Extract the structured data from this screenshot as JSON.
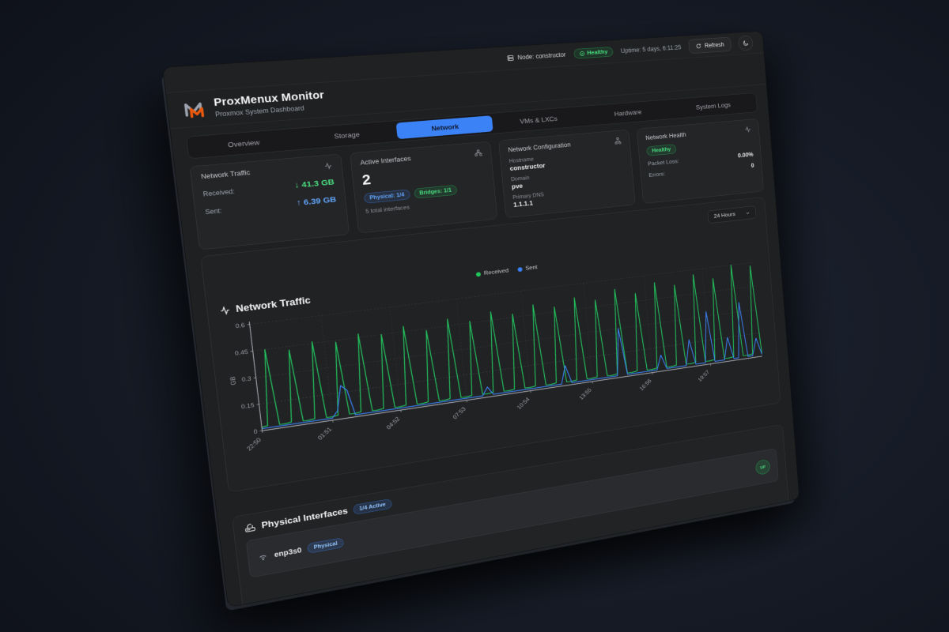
{
  "app": {
    "title": "ProxMenux Monitor",
    "subtitle": "Proxmox System Dashboard"
  },
  "topbar": {
    "node_label": "Node: constructor",
    "health_badge": "Healthy",
    "uptime": "Uptime: 5 days, 6:11:25",
    "refresh_label": "Refresh"
  },
  "tabs": {
    "items": [
      {
        "label": "Overview",
        "active": false
      },
      {
        "label": "Storage",
        "active": false
      },
      {
        "label": "Network",
        "active": true
      },
      {
        "label": "VMs & LXCs",
        "active": false
      },
      {
        "label": "Hardware",
        "active": false
      },
      {
        "label": "System Logs",
        "active": false
      }
    ]
  },
  "cards": {
    "traffic": {
      "title": "Network Traffic",
      "received_label": "Received:",
      "received_value": "↓ 41.3 GB",
      "sent_label": "Sent:",
      "sent_value": "↑ 6.39 GB"
    },
    "interfaces": {
      "title": "Active Interfaces",
      "count": "2",
      "physical_badge": "Physical: 1/4",
      "bridges_badge": "Bridges: 1/1",
      "total": "5 total interfaces"
    },
    "config": {
      "title": "Network Configuration",
      "hostname_label": "Hostname",
      "hostname": "constructor",
      "domain_label": "Domain",
      "domain": "pve",
      "dns_label": "Primary DNS",
      "dns": "1.1.1.1"
    },
    "health": {
      "title": "Network Health",
      "status": "Healthy",
      "packet_loss_label": "Packet Loss:",
      "packet_loss": "0.00%",
      "errors_label": "Errors:",
      "errors": "0"
    }
  },
  "range_select": {
    "value": "24 Hours"
  },
  "physical_section": {
    "title": "Physical Interfaces",
    "active_badge": "1/4 Active",
    "rows": [
      {
        "name": "enp3s0",
        "type_badge": "Physical",
        "status": "UP"
      }
    ]
  },
  "colors": {
    "accent_blue": "#3b82f6",
    "green": "#22c55e",
    "logo_orange": "#ea580c",
    "logo_gray": "#9ca3af"
  },
  "chart_data": {
    "type": "line",
    "title": "Network Traffic",
    "xlabel": "",
    "ylabel": "GB",
    "ylim": [
      0,
      0.6
    ],
    "yticks": [
      0,
      0.15,
      0.3,
      0.45,
      0.6
    ],
    "grid": true,
    "legend_position": "top-center",
    "x_tick_positions": [
      0,
      12,
      24,
      36,
      48,
      60,
      72,
      84
    ],
    "x_tick_labels": [
      "22:50",
      "01:51",
      "04:52",
      "07:53",
      "10:54",
      "13:55",
      "16:56",
      "19:57"
    ],
    "series": [
      {
        "name": "Received",
        "color": "#22c55e",
        "values": [
          0.02,
          0.024,
          0.45,
          0.021,
          0.02,
          0.024,
          0.43,
          0.021,
          0.02,
          0.024,
          0.46,
          0.021,
          0.02,
          0.024,
          0.44,
          0.021,
          0.02,
          0.024,
          0.47,
          0.021,
          0.02,
          0.024,
          0.45,
          0.021,
          0.02,
          0.024,
          0.48,
          0.021,
          0.02,
          0.024,
          0.44,
          0.021,
          0.02,
          0.024,
          0.49,
          0.021,
          0.02,
          0.024,
          0.46,
          0.021,
          0.02,
          0.024,
          0.5,
          0.021,
          0.02,
          0.024,
          0.47,
          0.021,
          0.02,
          0.024,
          0.51,
          0.021,
          0.02,
          0.024,
          0.48,
          0.021,
          0.02,
          0.024,
          0.52,
          0.021,
          0.02,
          0.024,
          0.49,
          0.021,
          0.02,
          0.024,
          0.54,
          0.021,
          0.02,
          0.024,
          0.5,
          0.021,
          0.02,
          0.024,
          0.55,
          0.021,
          0.02,
          0.024,
          0.52,
          0.021,
          0.02,
          0.024,
          0.57,
          0.021,
          0.02,
          0.024,
          0.53,
          0.021,
          0.02,
          0.024,
          0.6,
          0.021,
          0.02,
          0.024,
          0.58,
          0.021
        ]
      },
      {
        "name": "Sent",
        "color": "#3b82f6",
        "values": [
          0.012,
          0.012,
          0.012,
          0.012,
          0.012,
          0.012,
          0.012,
          0.012,
          0.012,
          0.012,
          0.012,
          0.012,
          0.012,
          0.05,
          0.19,
          0.16,
          0.012,
          0.012,
          0.012,
          0.012,
          0.012,
          0.012,
          0.012,
          0.012,
          0.012,
          0.012,
          0.012,
          0.012,
          0.012,
          0.012,
          0.012,
          0.012,
          0.012,
          0.012,
          0.012,
          0.012,
          0.012,
          0.012,
          0.012,
          0.012,
          0.06,
          0.012,
          0.012,
          0.012,
          0.012,
          0.012,
          0.012,
          0.012,
          0.012,
          0.012,
          0.012,
          0.012,
          0.012,
          0.012,
          0.012,
          0.12,
          0.012,
          0.012,
          0.012,
          0.012,
          0.012,
          0.012,
          0.012,
          0.012,
          0.012,
          0.012,
          0.3,
          0.012,
          0.012,
          0.012,
          0.012,
          0.012,
          0.012,
          0.012,
          0.1,
          0.012,
          0.012,
          0.012,
          0.012,
          0.012,
          0.17,
          0.012,
          0.012,
          0.012,
          0.33,
          0.012,
          0.012,
          0.012,
          0.15,
          0.012,
          0.012,
          0.36,
          0.012,
          0.012,
          0.12,
          0.012
        ]
      }
    ]
  }
}
